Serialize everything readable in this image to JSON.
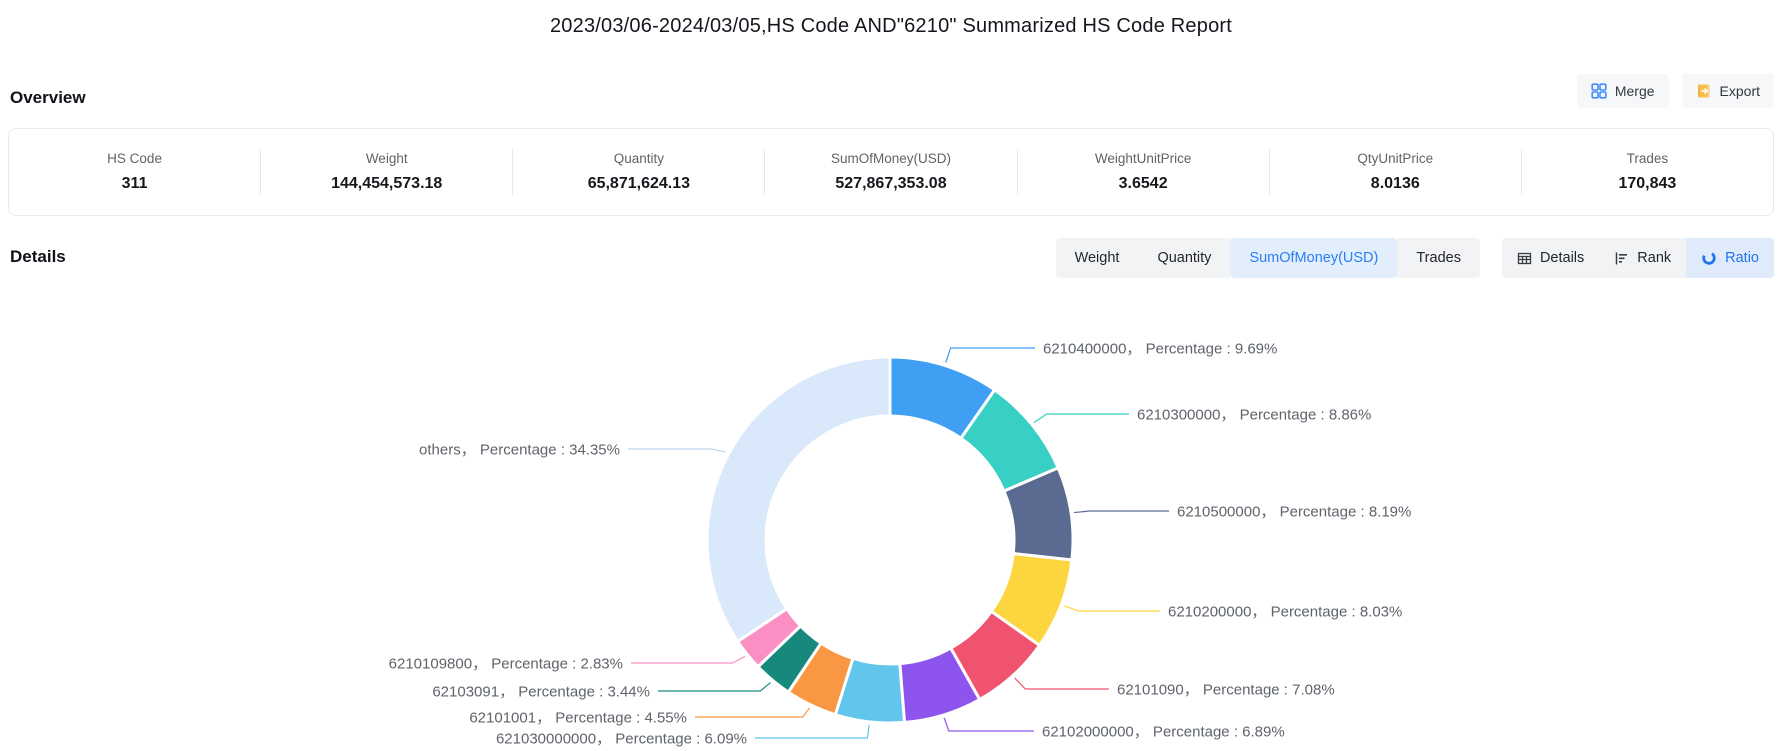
{
  "title": "2023/03/06-2024/03/05,HS Code AND\"6210\" Summarized HS Code Report",
  "overview": {
    "heading": "Overview",
    "merge_label": "Merge",
    "export_label": "Export",
    "stats": [
      {
        "label": "HS Code",
        "value": "311"
      },
      {
        "label": "Weight",
        "value": "144,454,573.18"
      },
      {
        "label": "Quantity",
        "value": "65,871,624.13"
      },
      {
        "label": "SumOfMoney(USD)",
        "value": "527,867,353.08"
      },
      {
        "label": "WeightUnitPrice",
        "value": "3.6542"
      },
      {
        "label": "QtyUnitPrice",
        "value": "8.0136"
      },
      {
        "label": "Trades",
        "value": "170,843"
      }
    ]
  },
  "details": {
    "heading": "Details",
    "metric_tabs": [
      {
        "label": "Weight",
        "active": false
      },
      {
        "label": "Quantity",
        "active": false
      },
      {
        "label": "SumOfMoney(USD)",
        "active": true
      },
      {
        "label": "Trades",
        "active": false
      }
    ],
    "view_tabs": [
      {
        "label": "Details",
        "active": false
      },
      {
        "label": "Rank",
        "active": false
      },
      {
        "label": "Ratio",
        "active": true
      }
    ]
  },
  "chart_data": {
    "type": "pie",
    "donut": true,
    "start_angle_deg": 0,
    "clockwise": true,
    "label_format": "{name}，Percentage : {value}%",
    "legend_position": "none",
    "segments": [
      {
        "name": "6210400000",
        "percentage": 9.69,
        "color": "#3E9FF3"
      },
      {
        "name": "6210300000",
        "percentage": 8.86,
        "color": "#38CFC4"
      },
      {
        "name": "6210500000",
        "percentage": 8.19,
        "color": "#5A6A90"
      },
      {
        "name": "6210200000",
        "percentage": 8.03,
        "color": "#FCD53F"
      },
      {
        "name": "62101090",
        "percentage": 7.08,
        "color": "#F0536F"
      },
      {
        "name": "62102000000",
        "percentage": 6.89,
        "color": "#8D55ED"
      },
      {
        "name": "621030000000",
        "percentage": 6.09,
        "color": "#62C5EC"
      },
      {
        "name": "62101001",
        "percentage": 4.55,
        "color": "#F99742"
      },
      {
        "name": "62103091",
        "percentage": 3.44,
        "color": "#16897C"
      },
      {
        "name": "6210109800",
        "percentage": 2.83,
        "color": "#FA8FC3"
      },
      {
        "name": "others",
        "percentage": 34.35,
        "color": "#D9E9FB"
      }
    ]
  }
}
